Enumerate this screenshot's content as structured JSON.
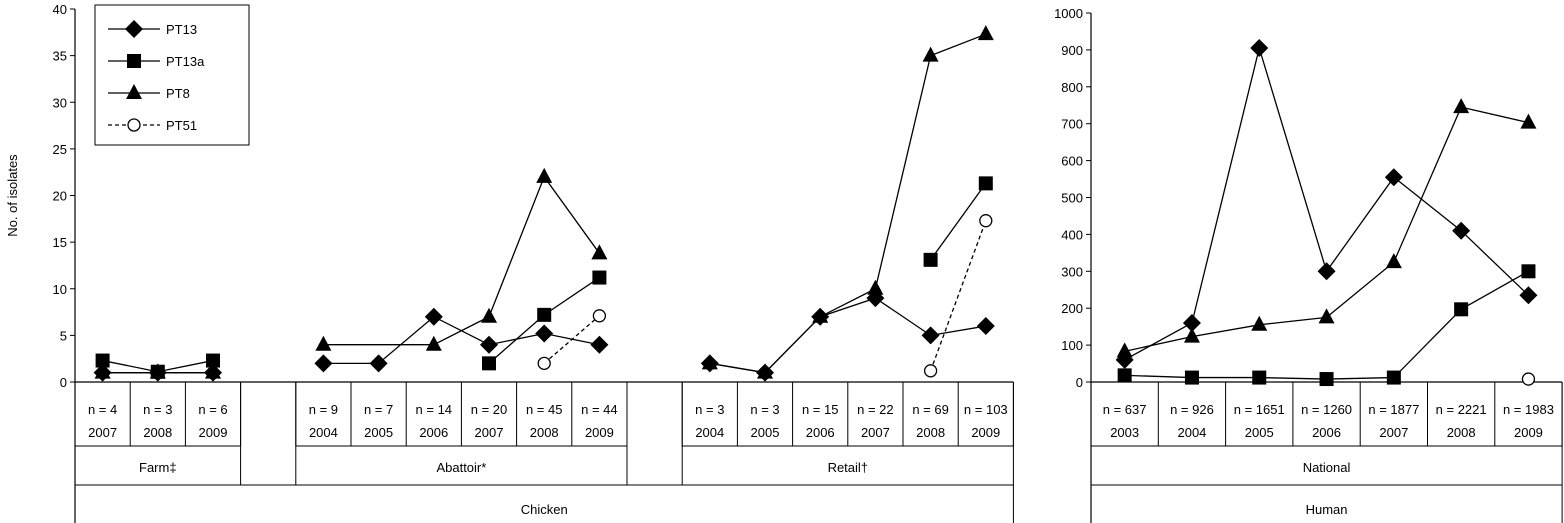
{
  "chart_data": [
    {
      "type": "line",
      "panel": "chicken",
      "ylabel": "No. of isolates",
      "ylim": [
        0,
        40
      ],
      "yticks": [
        0,
        5,
        10,
        15,
        20,
        25,
        30,
        35,
        40
      ],
      "legend": {
        "placement": "top-left",
        "entries": [
          "PT13",
          "PT13a",
          "PT8",
          "PT51"
        ]
      },
      "columns": [
        {
          "n": "n = 4",
          "year": "2007"
        },
        {
          "n": "n = 3",
          "year": "2008"
        },
        {
          "n": "n = 6",
          "year": "2009"
        },
        {
          "n": "",
          "year": ""
        },
        {
          "n": "n = 9",
          "year": "2004"
        },
        {
          "n": "n = 7",
          "year": "2005"
        },
        {
          "n": "n = 14",
          "year": "2006"
        },
        {
          "n": "n = 20",
          "year": "2007"
        },
        {
          "n": "n = 45",
          "year": "2008"
        },
        {
          "n": "n = 44",
          "year": "2009"
        },
        {
          "n": "",
          "year": ""
        },
        {
          "n": "n = 3",
          "year": "2004"
        },
        {
          "n": "n = 3",
          "year": "2005"
        },
        {
          "n": "n = 15",
          "year": "2006"
        },
        {
          "n": "n = 22",
          "year": "2007"
        },
        {
          "n": "n = 69",
          "year": "2008"
        },
        {
          "n": "n = 103",
          "year": "2009"
        }
      ],
      "groups": [
        {
          "label": "Farm‡",
          "from": 0,
          "to": 2
        },
        {
          "label": "Abattoir*",
          "from": 4,
          "to": 9
        },
        {
          "label": "Retail†",
          "from": 11,
          "to": 16
        }
      ],
      "category": "Chicken",
      "series": [
        {
          "name": "PT13",
          "marker": "diamond",
          "dashed": false,
          "segments": [
            [
              [
                0,
                1
              ],
              [
                1,
                1
              ],
              [
                2,
                1
              ]
            ],
            [
              [
                4,
                2
              ],
              [
                5,
                2
              ],
              [
                6,
                7
              ],
              [
                7,
                4
              ],
              [
                8,
                5.2
              ],
              [
                9,
                4
              ]
            ],
            [
              [
                11,
                2
              ],
              [
                12,
                1
              ],
              [
                13,
                7
              ],
              [
                14,
                9
              ],
              [
                15,
                5
              ],
              [
                16,
                6
              ]
            ]
          ]
        },
        {
          "name": "PT13a",
          "marker": "square",
          "dashed": false,
          "segments": [
            [
              [
                0,
                2.3
              ],
              [
                1,
                1.1
              ],
              [
                2,
                2.3
              ]
            ],
            [
              [
                7,
                2
              ],
              [
                8,
                7.2
              ],
              [
                9,
                11.2
              ]
            ],
            [
              [
                15,
                13.1
              ],
              [
                16,
                21.3
              ]
            ]
          ]
        },
        {
          "name": "PT8",
          "marker": "triangle",
          "dashed": false,
          "segments": [
            [
              [
                0,
                1
              ],
              [
                1,
                1
              ],
              [
                2,
                1
              ]
            ],
            [
              [
                4,
                4
              ],
              [
                6,
                4
              ],
              [
                7,
                7
              ],
              [
                8,
                22
              ],
              [
                9,
                13.8
              ]
            ],
            [
              [
                11,
                2
              ],
              [
                12,
                1
              ],
              [
                13,
                7
              ],
              [
                14,
                10
              ],
              [
                15,
                35
              ],
              [
                16,
                37.3
              ]
            ]
          ]
        },
        {
          "name": "PT51",
          "marker": "circle",
          "dashed": true,
          "segments": [
            [
              [
                8,
                2
              ],
              [
                9,
                7.1
              ]
            ],
            [
              [
                15,
                1.2
              ],
              [
                16,
                17.3
              ]
            ]
          ]
        }
      ]
    },
    {
      "type": "line",
      "panel": "human",
      "ylim": [
        0,
        1000
      ],
      "yticks": [
        0,
        100,
        200,
        300,
        400,
        500,
        600,
        700,
        800,
        900,
        1000
      ],
      "columns": [
        {
          "n": "n = 637",
          "year": "2003"
        },
        {
          "n": "n = 926",
          "year": "2004"
        },
        {
          "n": "n = 1651",
          "year": "2005"
        },
        {
          "n": "n = 1260",
          "year": "2006"
        },
        {
          "n": "n = 1877",
          "year": "2007"
        },
        {
          "n": "n = 2221",
          "year": "2008"
        },
        {
          "n": "n = 1983",
          "year": "2009"
        }
      ],
      "groups": [
        {
          "label": "National",
          "from": 0,
          "to": 6
        }
      ],
      "category": "Human",
      "series": [
        {
          "name": "PT13",
          "marker": "diamond",
          "dashed": false,
          "segments": [
            [
              [
                0,
                60
              ],
              [
                1,
                160
              ],
              [
                2,
                905
              ],
              [
                3,
                300
              ],
              [
                4,
                555
              ],
              [
                5,
                410
              ],
              [
                6,
                235
              ]
            ]
          ]
        },
        {
          "name": "PT13a",
          "marker": "square",
          "dashed": false,
          "segments": [
            [
              [
                0,
                18
              ],
              [
                1,
                12
              ],
              [
                2,
                12
              ],
              [
                3,
                8
              ],
              [
                4,
                12
              ],
              [
                5,
                197
              ],
              [
                6,
                300
              ]
            ]
          ]
        },
        {
          "name": "PT8",
          "marker": "triangle",
          "dashed": false,
          "segments": [
            [
              [
                0,
                83
              ],
              [
                1,
                123
              ],
              [
                2,
                155
              ],
              [
                3,
                175
              ],
              [
                4,
                325
              ],
              [
                5,
                745
              ],
              [
                6,
                703
              ]
            ]
          ]
        },
        {
          "name": "PT51",
          "marker": "circle",
          "dashed": true,
          "segments": [
            [
              [
                6,
                8
              ]
            ]
          ]
        }
      ]
    }
  ]
}
